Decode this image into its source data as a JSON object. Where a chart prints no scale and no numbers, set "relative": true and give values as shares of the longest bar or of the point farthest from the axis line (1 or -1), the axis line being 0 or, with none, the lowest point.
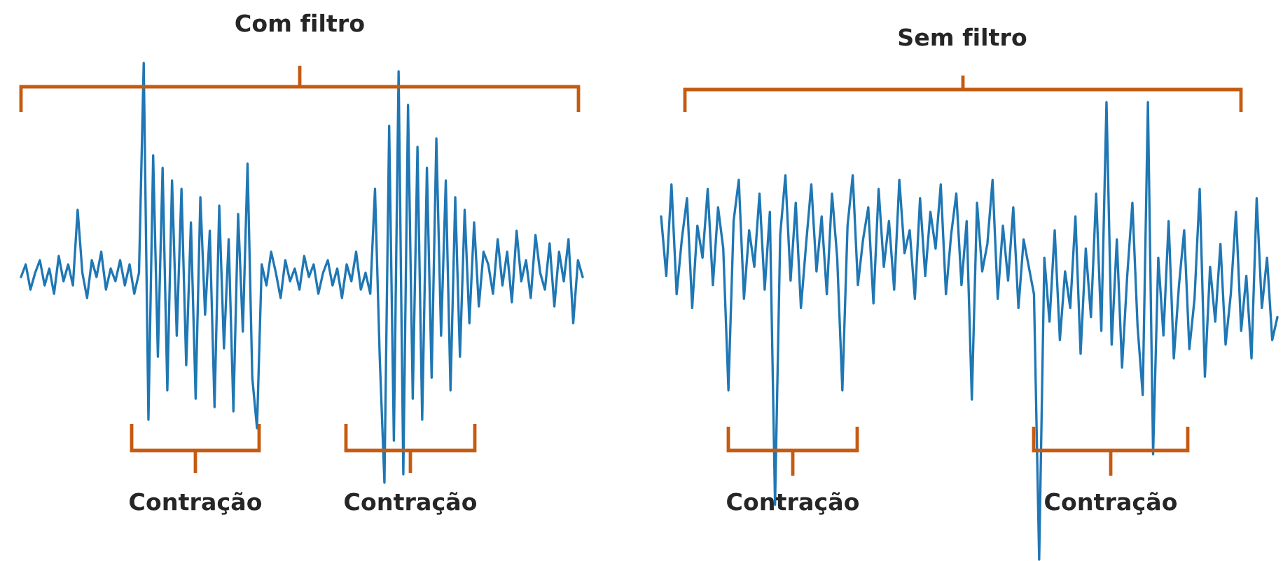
{
  "chart_data": [
    {
      "type": "line",
      "title": "Com filtro",
      "relative": true,
      "annotations": [
        "Contração",
        "Contração"
      ],
      "categories": [
        null,
        null,
        null,
        null,
        null,
        null,
        null,
        null,
        null,
        null,
        null,
        null,
        null,
        null,
        null,
        null,
        null,
        null,
        null,
        null,
        null,
        null,
        null,
        null,
        null,
        null,
        null,
        null,
        null,
        null,
        null,
        null,
        null,
        null,
        null,
        null,
        null,
        null,
        null,
        null,
        null,
        null,
        null,
        null,
        null,
        null,
        null,
        null,
        null,
        null,
        null,
        null,
        null,
        null,
        null,
        null,
        null,
        null,
        null,
        null,
        null,
        null,
        null,
        null,
        null,
        null,
        null,
        null,
        null,
        null,
        null,
        null,
        null,
        null,
        null,
        null,
        null,
        null,
        null,
        null,
        null,
        null,
        null,
        null,
        null,
        null,
        null,
        null,
        null,
        null,
        null,
        null,
        null,
        null,
        null,
        null,
        null,
        null,
        null,
        null,
        null,
        null,
        null,
        null,
        null,
        null,
        null,
        null,
        null,
        null,
        null,
        null,
        null,
        null,
        null,
        null,
        null,
        null,
        null,
        null
      ],
      "series": [
        {
          "color": "#1f77b4",
          "values": [
            0.49,
            0.52,
            0.46,
            0.5,
            0.53,
            0.47,
            0.51,
            0.45,
            0.54,
            0.48,
            0.52,
            0.47,
            0.65,
            0.5,
            0.44,
            0.53,
            0.49,
            0.55,
            0.46,
            0.51,
            0.48,
            0.53,
            0.47,
            0.52,
            0.45,
            0.5,
            1.0,
            0.15,
            0.78,
            0.3,
            0.75,
            0.22,
            0.72,
            0.35,
            0.7,
            0.28,
            0.62,
            0.2,
            0.68,
            0.4,
            0.6,
            0.18,
            0.66,
            0.32,
            0.58,
            0.17,
            0.64,
            0.36,
            0.76,
            0.25,
            0.13,
            0.52,
            0.47,
            0.55,
            0.5,
            0.44,
            0.53,
            0.48,
            0.51,
            0.46,
            0.54,
            0.49,
            0.52,
            0.45,
            0.5,
            0.53,
            0.47,
            0.51,
            0.44,
            0.52,
            0.48,
            0.55,
            0.46,
            0.5,
            0.45,
            0.7,
            0.3,
            0.0,
            0.85,
            0.1,
            0.98,
            0.02,
            0.9,
            0.2,
            0.8,
            0.15,
            0.75,
            0.25,
            0.82,
            0.35,
            0.72,
            0.22,
            0.68,
            0.3,
            0.65,
            0.38,
            0.62,
            0.42,
            0.55,
            0.52,
            0.45,
            0.58,
            0.47,
            0.55,
            0.43,
            0.6,
            0.48,
            0.53,
            0.44,
            0.59,
            0.5,
            0.46,
            0.57,
            0.42,
            0.55,
            0.48,
            0.58,
            0.38,
            0.53,
            0.49
          ]
        }
      ]
    },
    {
      "type": "line",
      "title": "Sem filtro",
      "relative": true,
      "annotations": [
        "Contração",
        "Contração"
      ],
      "categories": [
        null,
        null,
        null,
        null,
        null,
        null,
        null,
        null,
        null,
        null,
        null,
        null,
        null,
        null,
        null,
        null,
        null,
        null,
        null,
        null,
        null,
        null,
        null,
        null,
        null,
        null,
        null,
        null,
        null,
        null,
        null,
        null,
        null,
        null,
        null,
        null,
        null,
        null,
        null,
        null,
        null,
        null,
        null,
        null,
        null,
        null,
        null,
        null,
        null,
        null,
        null,
        null,
        null,
        null,
        null,
        null,
        null,
        null,
        null,
        null,
        null,
        null,
        null,
        null,
        null,
        null,
        null,
        null,
        null,
        null,
        null,
        null,
        null,
        null,
        null,
        null,
        null,
        null,
        null,
        null,
        null,
        null,
        null,
        null,
        null,
        null,
        null,
        null,
        null,
        null,
        null,
        null,
        null,
        null,
        null,
        null,
        null,
        null,
        null,
        null,
        null,
        null,
        null,
        null,
        null,
        null,
        null,
        null,
        null,
        null,
        null,
        null,
        null,
        null,
        null,
        null,
        null,
        null,
        null,
        null
      ],
      "series": [
        {
          "color": "#1f77b4",
          "values": [
            0.75,
            0.62,
            0.82,
            0.58,
            0.7,
            0.79,
            0.55,
            0.73,
            0.66,
            0.81,
            0.6,
            0.77,
            0.68,
            0.37,
            0.74,
            0.83,
            0.57,
            0.72,
            0.64,
            0.8,
            0.59,
            0.76,
            0.12,
            0.71,
            0.84,
            0.61,
            0.78,
            0.55,
            0.69,
            0.82,
            0.63,
            0.75,
            0.58,
            0.8,
            0.66,
            0.37,
            0.73,
            0.84,
            0.6,
            0.7,
            0.77,
            0.56,
            0.81,
            0.64,
            0.74,
            0.59,
            0.83,
            0.67,
            0.72,
            0.57,
            0.79,
            0.62,
            0.76,
            0.68,
            0.82,
            0.58,
            0.71,
            0.8,
            0.6,
            0.74,
            0.35,
            0.78,
            0.63,
            0.69,
            0.83,
            0.57,
            0.73,
            0.61,
            0.77,
            0.55,
            0.7,
            0.64,
            0.58,
            0.0,
            0.66,
            0.52,
            0.72,
            0.48,
            0.63,
            0.55,
            0.75,
            0.45,
            0.68,
            0.53,
            0.8,
            0.5,
            1.0,
            0.47,
            0.7,
            0.42,
            0.62,
            0.78,
            0.51,
            0.36,
            1.0,
            0.23,
            0.66,
            0.49,
            0.74,
            0.44,
            0.6,
            0.72,
            0.46,
            0.57,
            0.81,
            0.4,
            0.64,
            0.52,
            0.69,
            0.47,
            0.58,
            0.76,
            0.5,
            0.62,
            0.44,
            0.79,
            0.55,
            0.66,
            0.48,
            0.53
          ]
        }
      ]
    }
  ]
}
